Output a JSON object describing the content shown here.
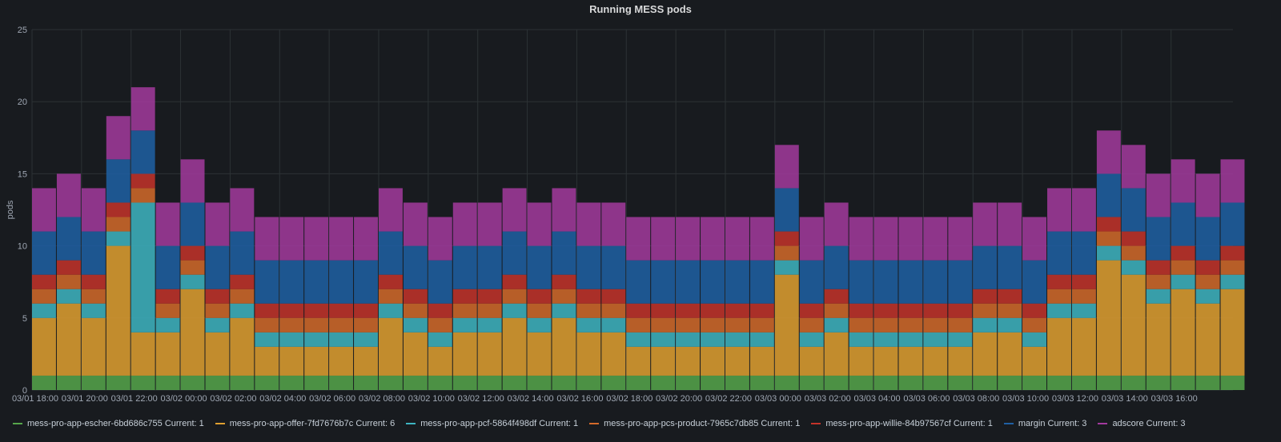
{
  "panel": {
    "title": "Running MESS pods"
  },
  "chart_data": {
    "type": "bar",
    "stacked": true,
    "title": "Running MESS pods",
    "ylabel": "pods",
    "xlabel": "",
    "ylim": [
      0,
      25
    ],
    "yticks": [
      0,
      5,
      10,
      15,
      20,
      25
    ],
    "x_start_hour": 18,
    "x_end_hour": 66.5,
    "xticks": [
      {
        "hour": 18,
        "label": "03/01 18:00"
      },
      {
        "hour": 20,
        "label": "03/01 20:00"
      },
      {
        "hour": 22,
        "label": "03/01 22:00"
      },
      {
        "hour": 24,
        "label": "03/02 00:00"
      },
      {
        "hour": 26,
        "label": "03/02 02:00"
      },
      {
        "hour": 28,
        "label": "03/02 04:00"
      },
      {
        "hour": 30,
        "label": "03/02 06:00"
      },
      {
        "hour": 32,
        "label": "03/02 08:00"
      },
      {
        "hour": 34,
        "label": "03/02 10:00"
      },
      {
        "hour": 36,
        "label": "03/02 12:00"
      },
      {
        "hour": 38,
        "label": "03/02 14:00"
      },
      {
        "hour": 40,
        "label": "03/02 16:00"
      },
      {
        "hour": 42,
        "label": "03/02 18:00"
      },
      {
        "hour": 44,
        "label": "03/02 20:00"
      },
      {
        "hour": 46,
        "label": "03/02 22:00"
      },
      {
        "hour": 48,
        "label": "03/03 00:00"
      },
      {
        "hour": 50,
        "label": "03/03 02:00"
      },
      {
        "hour": 52,
        "label": "03/03 04:00"
      },
      {
        "hour": 54,
        "label": "03/03 06:00"
      },
      {
        "hour": 56,
        "label": "03/03 08:00"
      },
      {
        "hour": 58,
        "label": "03/03 10:00"
      },
      {
        "hour": 60,
        "label": "03/03 12:00"
      },
      {
        "hour": 62,
        "label": "03/03 14:00"
      },
      {
        "hour": 64,
        "label": "03/03 16:00"
      }
    ],
    "bucket_hours": 1,
    "x": [
      18,
      19,
      20,
      21,
      22,
      23,
      24,
      25,
      26,
      27,
      28,
      29,
      30,
      31,
      32,
      33,
      34,
      35,
      36,
      37,
      38,
      39,
      40,
      41,
      42,
      43,
      44,
      45,
      46,
      47,
      48,
      49,
      50,
      51,
      52,
      53,
      54,
      55,
      56,
      57,
      58,
      59,
      60,
      61,
      62,
      63,
      64,
      65,
      66
    ],
    "series": [
      {
        "name": "mess-pro-app-escher-6bd686c755",
        "current": "Current: 1",
        "color": "#56a64b",
        "values": [
          1,
          1,
          1,
          1,
          1,
          1,
          1,
          1,
          1,
          1,
          1,
          1,
          1,
          1,
          1,
          1,
          1,
          1,
          1,
          1,
          1,
          1,
          1,
          1,
          1,
          1,
          1,
          1,
          1,
          1,
          1,
          1,
          1,
          1,
          1,
          1,
          1,
          1,
          1,
          1,
          1,
          1,
          1,
          1,
          1,
          1,
          1,
          1,
          1
        ]
      },
      {
        "name": "mess-pro-app-offer-7fd7676b7c",
        "current": "Current: 6",
        "color": "#e0a030",
        "values": [
          4,
          5,
          4,
          9,
          3,
          3,
          6,
          3,
          4,
          2,
          2,
          2,
          2,
          2,
          4,
          3,
          2,
          3,
          3,
          4,
          3,
          4,
          3,
          3,
          2,
          2,
          2,
          2,
          2,
          2,
          7,
          2,
          3,
          2,
          2,
          2,
          2,
          2,
          3,
          3,
          2,
          4,
          4,
          8,
          7,
          5,
          6,
          5,
          6
        ]
      },
      {
        "name": "mess-pro-app-pcf-5864f498df",
        "current": "Current: 1",
        "color": "#3eb5c2",
        "values": [
          1,
          1,
          1,
          1,
          9,
          1,
          1,
          1,
          1,
          1,
          1,
          1,
          1,
          1,
          1,
          1,
          1,
          1,
          1,
          1,
          1,
          1,
          1,
          1,
          1,
          1,
          1,
          1,
          1,
          1,
          1,
          1,
          1,
          1,
          1,
          1,
          1,
          1,
          1,
          1,
          1,
          1,
          1,
          1,
          1,
          1,
          1,
          1,
          1
        ]
      },
      {
        "name": "mess-pro-app-pcs-product-7965c7db85",
        "current": "Current: 1",
        "color": "#d46a2a",
        "values": [
          1,
          1,
          1,
          1,
          1,
          1,
          1,
          1,
          1,
          1,
          1,
          1,
          1,
          1,
          1,
          1,
          1,
          1,
          1,
          1,
          1,
          1,
          1,
          1,
          1,
          1,
          1,
          1,
          1,
          1,
          1,
          1,
          1,
          1,
          1,
          1,
          1,
          1,
          1,
          1,
          1,
          1,
          1,
          1,
          1,
          1,
          1,
          1,
          1
        ]
      },
      {
        "name": "mess-pro-app-willie-84b97567cf",
        "current": "Current: 1",
        "color": "#c4332a",
        "values": [
          1,
          1,
          1,
          1,
          1,
          1,
          1,
          1,
          1,
          1,
          1,
          1,
          1,
          1,
          1,
          1,
          1,
          1,
          1,
          1,
          1,
          1,
          1,
          1,
          1,
          1,
          1,
          1,
          1,
          1,
          1,
          1,
          1,
          1,
          1,
          1,
          1,
          1,
          1,
          1,
          1,
          1,
          1,
          1,
          1,
          1,
          1,
          1,
          1
        ]
      },
      {
        "name": "margin",
        "current": "Current: 3",
        "color": "#1f60a4",
        "values": [
          3,
          3,
          3,
          3,
          3,
          3,
          3,
          3,
          3,
          3,
          3,
          3,
          3,
          3,
          3,
          3,
          3,
          3,
          3,
          3,
          3,
          3,
          3,
          3,
          3,
          3,
          3,
          3,
          3,
          3,
          3,
          3,
          3,
          3,
          3,
          3,
          3,
          3,
          3,
          3,
          3,
          3,
          3,
          3,
          3,
          3,
          3,
          3,
          3
        ]
      },
      {
        "name": "adscore",
        "current": "Current: 3",
        "color": "#a3399e",
        "values": [
          3,
          3,
          3,
          3,
          3,
          3,
          3,
          3,
          3,
          3,
          3,
          3,
          3,
          3,
          3,
          3,
          3,
          3,
          3,
          3,
          3,
          3,
          3,
          3,
          3,
          3,
          3,
          3,
          3,
          3,
          3,
          3,
          3,
          3,
          3,
          3,
          3,
          3,
          3,
          3,
          3,
          3,
          3,
          3,
          3,
          3,
          3,
          3,
          3
        ]
      }
    ]
  }
}
